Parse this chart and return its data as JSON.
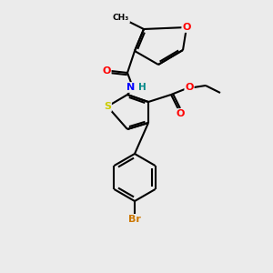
{
  "background_color": "#ebebeb",
  "bond_color": "#000000",
  "atom_colors": {
    "O": "#ff0000",
    "N": "#0000ff",
    "S": "#cccc00",
    "Br": "#cc7700",
    "C": "#000000",
    "H": "#008888"
  },
  "figsize": [
    3.0,
    3.0
  ],
  "dpi": 100,
  "lw": 1.5,
  "doffset": 2.2
}
